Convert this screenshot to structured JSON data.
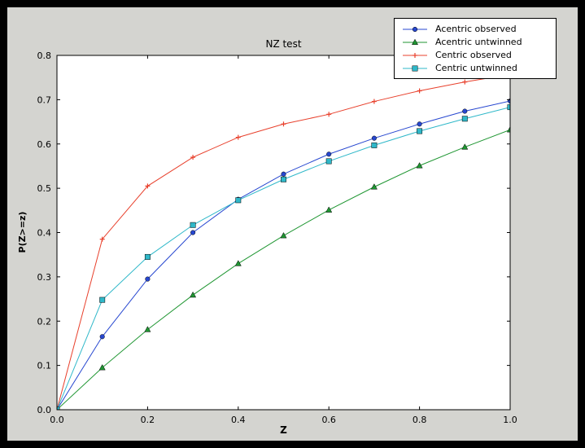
{
  "window": {
    "background": "#000000",
    "figure_background": "#d4d4d0",
    "plot_background": "#ffffff"
  },
  "chart_data": {
    "type": "line",
    "title": "NZ test",
    "xlabel": "Z",
    "ylabel": "P(Z>=z)",
    "xlim": [
      0,
      1
    ],
    "ylim": [
      0,
      0.8
    ],
    "grid": false,
    "legend_position": "upper right",
    "xticks": [
      0,
      0.2,
      0.4,
      0.6,
      0.8,
      1.0
    ],
    "xtick_labels": [
      "0.0",
      "0.2",
      "0.4",
      "0.6",
      "0.8",
      "1.0"
    ],
    "yticks": [
      0,
      0.1,
      0.2,
      0.3,
      0.4,
      0.5,
      0.6,
      0.7,
      0.8
    ],
    "ytick_labels": [
      "0.0",
      "0.1",
      "0.2",
      "0.3",
      "0.4",
      "0.5",
      "0.6",
      "0.7",
      "0.8"
    ],
    "x": [
      0,
      0.1,
      0.2,
      0.3,
      0.4,
      0.5,
      0.6,
      0.7,
      0.8,
      0.9,
      1.0
    ],
    "series": [
      {
        "name": "Acentric observed",
        "color": "#2747d0",
        "marker": "circle",
        "values": [
          0,
          0.165,
          0.295,
          0.4,
          0.475,
          0.532,
          0.577,
          0.613,
          0.645,
          0.674,
          0.697
        ]
      },
      {
        "name": "Acentric untwinned",
        "color": "#1f9632",
        "marker": "triangle",
        "values": [
          0,
          0.095,
          0.181,
          0.259,
          0.33,
          0.393,
          0.451,
          0.503,
          0.551,
          0.593,
          0.632
        ]
      },
      {
        "name": "Centric observed",
        "color": "#e8402c",
        "marker": "plus",
        "values": [
          0,
          0.385,
          0.505,
          0.57,
          0.615,
          0.645,
          0.667,
          0.696,
          0.72,
          0.74,
          0.757
        ]
      },
      {
        "name": "Centric untwinned",
        "color": "#2fb8c9",
        "marker": "square",
        "values": [
          0,
          0.248,
          0.345,
          0.417,
          0.473,
          0.52,
          0.561,
          0.597,
          0.629,
          0.657,
          0.683
        ]
      }
    ]
  }
}
